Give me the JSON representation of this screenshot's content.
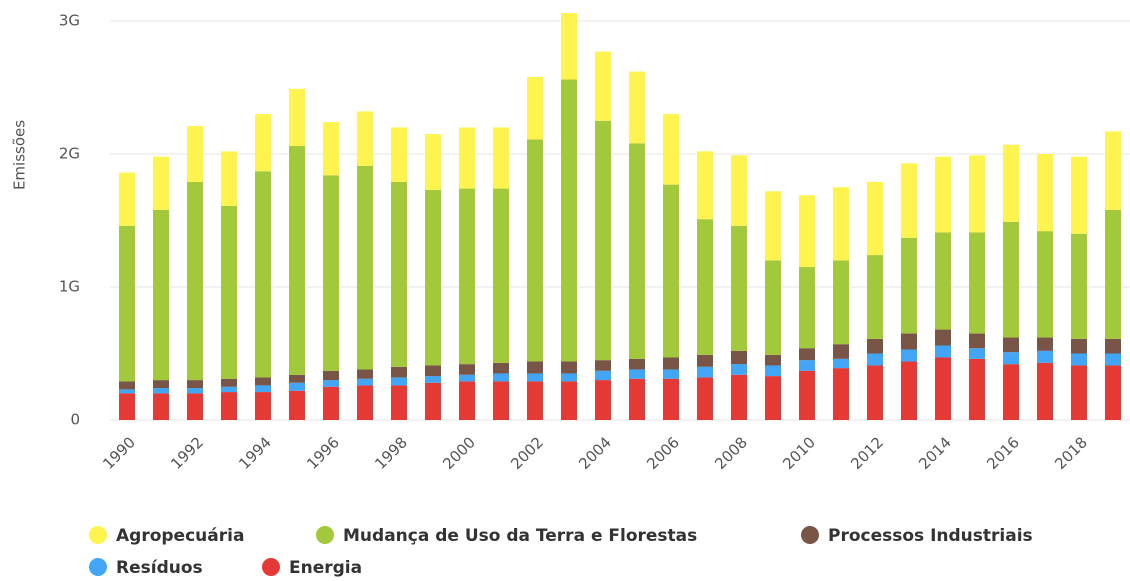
{
  "chart_data": {
    "type": "stacked_bar",
    "y_label": "Emissões",
    "categories": [
      1990,
      null,
      1992,
      null,
      1994,
      null,
      1996,
      null,
      1998,
      null,
      2000,
      null,
      2002,
      null,
      2004,
      null,
      2006,
      null,
      2008,
      null,
      2010,
      null,
      2012,
      null,
      2014,
      null,
      2016,
      null,
      2018,
      null
    ],
    "series": [
      {
        "name": "Agropecuária",
        "color": "#fff34f",
        "values": [
          0.4,
          0.4,
          0.42,
          0.41,
          0.43,
          0.43,
          0.4,
          0.41,
          0.41,
          0.42,
          0.46,
          0.46,
          0.47,
          0.5,
          0.52,
          0.54,
          0.53,
          0.51,
          0.53,
          0.52,
          0.54,
          0.55,
          0.55,
          0.56,
          0.57,
          0.58,
          0.58,
          0.58,
          0.58,
          0.59
        ]
      },
      {
        "name": "Mudança de Uso da Terra e Florestas",
        "color": "#a2c83b",
        "values": [
          1.17,
          1.28,
          1.49,
          1.3,
          1.55,
          1.72,
          1.47,
          1.53,
          1.39,
          1.32,
          1.32,
          1.31,
          1.67,
          2.12,
          1.8,
          1.62,
          1.3,
          1.02,
          0.94,
          0.71,
          0.61,
          0.63,
          0.63,
          0.72,
          0.73,
          0.76,
          0.87,
          0.8,
          0.79,
          0.97
        ]
      },
      {
        "name": "Processos Industriais",
        "color": "#795548",
        "values": [
          0.06,
          0.06,
          0.06,
          0.06,
          0.06,
          0.06,
          0.07,
          0.07,
          0.08,
          0.08,
          0.08,
          0.08,
          0.09,
          0.09,
          0.08,
          0.08,
          0.09,
          0.09,
          0.1,
          0.08,
          0.09,
          0.11,
          0.11,
          0.12,
          0.12,
          0.11,
          0.11,
          0.1,
          0.11,
          0.11
        ]
      },
      {
        "name": "Resíduos",
        "color": "#42a5f5",
        "values": [
          0.03,
          0.04,
          0.04,
          0.04,
          0.05,
          0.06,
          0.05,
          0.05,
          0.06,
          0.05,
          0.05,
          0.06,
          0.06,
          0.06,
          0.07,
          0.07,
          0.07,
          0.08,
          0.08,
          0.08,
          0.08,
          0.07,
          0.09,
          0.09,
          0.09,
          0.08,
          0.09,
          0.09,
          0.09,
          0.09
        ]
      },
      {
        "name": "Energia",
        "color": "#e53935",
        "values": [
          0.2,
          0.2,
          0.2,
          0.21,
          0.21,
          0.22,
          0.25,
          0.26,
          0.26,
          0.28,
          0.29,
          0.29,
          0.29,
          0.29,
          0.3,
          0.31,
          0.31,
          0.32,
          0.34,
          0.33,
          0.37,
          0.39,
          0.41,
          0.44,
          0.47,
          0.46,
          0.42,
          0.43,
          0.41,
          0.41
        ]
      }
    ],
    "ylim": [
      0,
      3
    ],
    "yticks": [
      0,
      {
        "value": 1,
        "label": "1G"
      },
      {
        "value": 2,
        "label": "2G"
      },
      {
        "value": 3,
        "label": "3G"
      }
    ],
    "grid": true
  }
}
